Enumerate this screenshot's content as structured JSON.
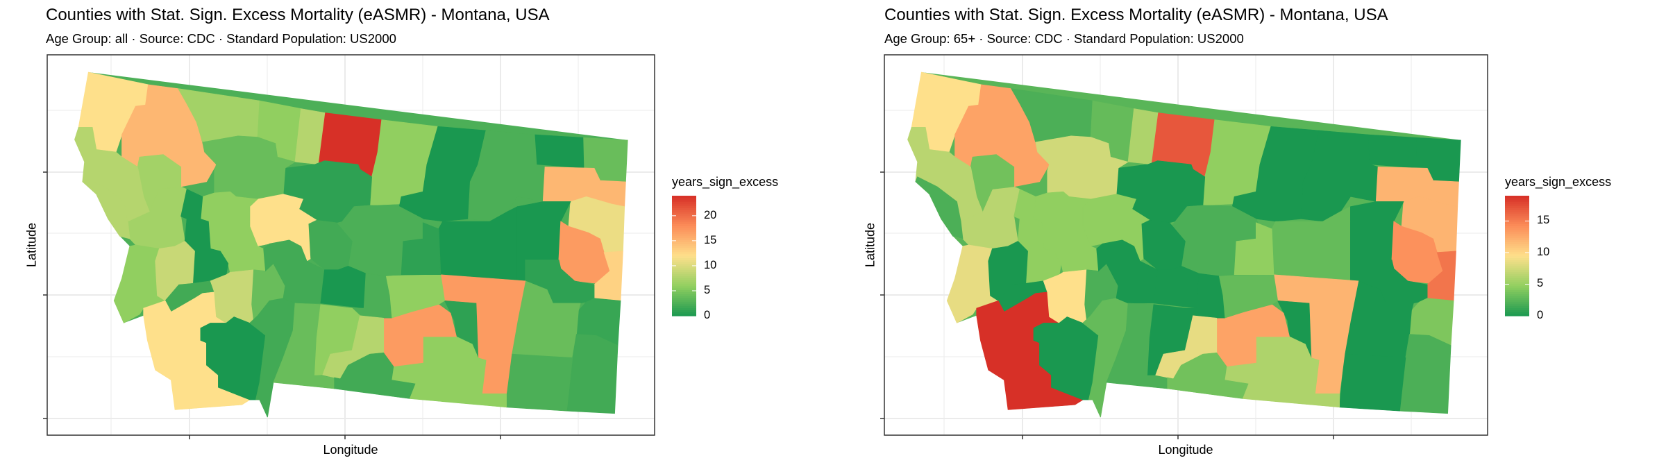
{
  "chart_data": [
    {
      "type": "choropleth",
      "title": "Counties with Stat. Sign. Excess Mortality (eASMR) - Montana, USA",
      "subtitle": "Age Group: all · Source: CDC · Standard Population: US2000",
      "xlabel": "Longitude",
      "ylabel": "Latitude",
      "legend": {
        "title": "years_sign_excess",
        "ticks": [
          "0",
          "5",
          "10",
          "15",
          "20"
        ],
        "limits": [
          0,
          24
        ],
        "placement": "right"
      },
      "values": [
        12,
        15,
        7,
        6,
        8,
        24,
        6,
        0,
        2.5,
        0,
        4,
        15,
        11,
        0,
        0,
        17,
        13,
        1,
        1.5,
        4,
        2,
        2.5,
        17,
        1,
        6,
        17,
        6,
        1,
        4,
        2.5,
        1,
        12,
        2,
        6,
        0,
        7,
        8,
        8,
        6,
        9,
        2,
        12,
        9,
        0,
        4,
        2,
        2,
        0,
        2.5,
        4,
        6,
        8,
        2,
        7
      ]
    },
    {
      "type": "choropleth",
      "title": "Counties with Stat. Sign. Excess Mortality (eASMR) - Montana, USA",
      "subtitle": "Age Group: 65+ · Source: CDC · Standard Population: US2000",
      "xlabel": "Longitude",
      "ylabel": "Latitude",
      "legend": {
        "title": "years_sign_excess",
        "ticks": [
          "0",
          "5",
          "10",
          "15"
        ],
        "limits": [
          0,
          19
        ],
        "placement": "right"
      },
      "values": [
        9.5,
        13,
        2,
        3,
        6,
        17,
        4.75,
        0,
        0,
        0,
        0,
        12,
        12,
        3,
        0,
        14,
        15.5,
        0,
        4,
        0,
        2,
        0,
        12,
        0,
        6,
        13,
        3,
        0,
        7.5,
        2,
        4.75,
        4.75,
        0,
        4.75,
        4.75,
        3.5,
        6.5,
        2,
        8.5,
        0,
        0,
        19,
        9.5,
        0,
        2,
        3,
        0,
        0,
        0,
        2,
        0,
        8.5,
        3.5,
        6.5
      ]
    }
  ],
  "colors": {
    "low": "#1a9850",
    "lowmid": "#91cf60",
    "mid": "#fee08b",
    "midhigh": "#fc8d59",
    "high": "#d73027",
    "grid": "#ebebeb",
    "border": "#333333"
  }
}
